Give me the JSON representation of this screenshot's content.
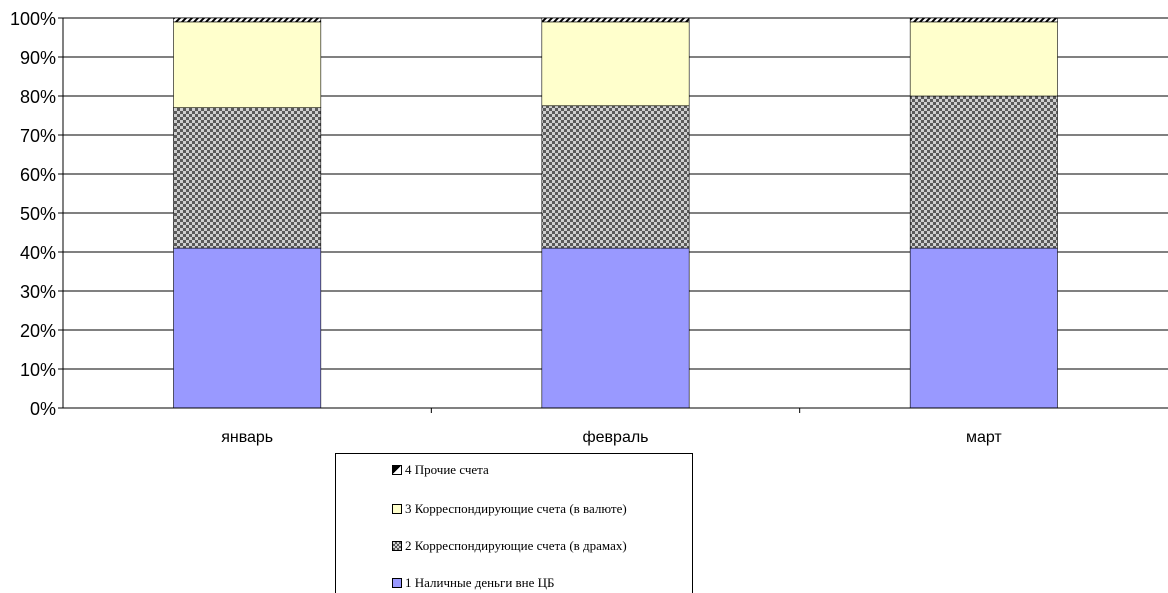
{
  "chart_data": {
    "type": "bar",
    "stacked": true,
    "percent": true,
    "categories": [
      "январь",
      "февраль",
      "март"
    ],
    "series": [
      {
        "name": "1 Наличные деньги вне ЦБ",
        "values": [
          41,
          41,
          41
        ],
        "color": "#9999FF",
        "pattern": "solid"
      },
      {
        "name": "2 Корреспондирующие счета (в драмах)",
        "values": [
          36,
          36.5,
          39
        ],
        "color": "#808080",
        "pattern": "checker"
      },
      {
        "name": "3 Корреспондирующие счета (в валюте)",
        "values": [
          22,
          21.5,
          19
        ],
        "color": "#FFFFCC",
        "pattern": "solid"
      },
      {
        "name": "4 Прочие счета",
        "values": [
          1,
          1,
          1
        ],
        "color": "#000000",
        "pattern": "diagonal"
      }
    ],
    "yticks": [
      "0%",
      "10%",
      "20%",
      "30%",
      "40%",
      "50%",
      "60%",
      "70%",
      "80%",
      "90%",
      "100%"
    ],
    "ylim": [
      0,
      100
    ],
    "grid": true,
    "legend_position": "bottom"
  },
  "legend": {
    "items": [
      {
        "label": "4 Прочие счета",
        "icon": "diagonal-swatch"
      },
      {
        "label": "3 Корреспондирующие счета (в валюте)",
        "icon": "yellow-swatch"
      },
      {
        "label": "2 Корреспондирующие счета (в драмах)",
        "icon": "checker-swatch"
      },
      {
        "label": "1 Наличные деньги вне ЦБ",
        "icon": "blue-swatch"
      }
    ]
  }
}
